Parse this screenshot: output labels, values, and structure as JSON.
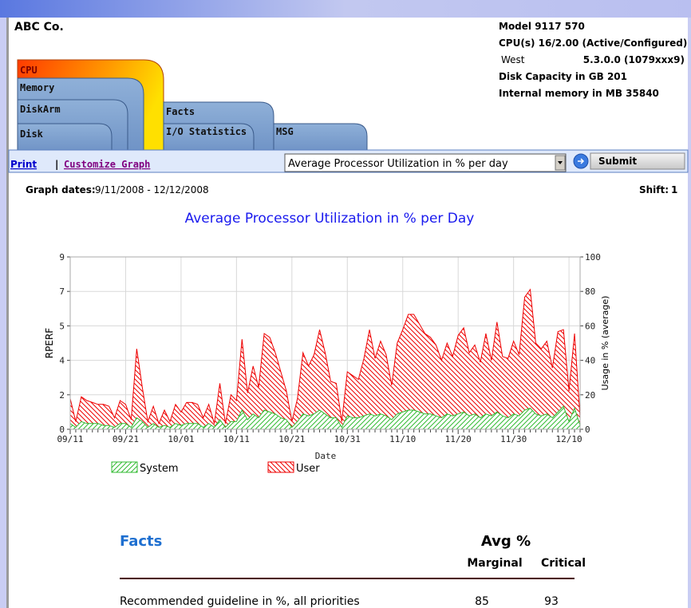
{
  "header": {
    "company": "ABC Co.",
    "model": "Model 9117 570",
    "cpus": "CPU(s) 16/2.00 (Active/Configured)",
    "region": "West",
    "version": "5.3.0.0  (1079xxx9)",
    "disk": "Disk Capacity in GB 201",
    "memory": "Internal memory in MB 35840"
  },
  "tabs": [
    "CPU",
    "Memory",
    "DiskArm",
    "Disk",
    "Facts",
    "I/O Statistics",
    "MSG"
  ],
  "toolbar": {
    "print": "Print",
    "separator": "|",
    "customize": "Customize Graph",
    "select": "Average Processor Utilization in % per day",
    "submit": "Submit"
  },
  "graph_dates": {
    "label": "Graph dates:",
    "value": "9/11/2008 - 12/12/2008"
  },
  "shift": {
    "label": "Shift:",
    "value": "1"
  },
  "chart_data": {
    "type": "area",
    "title": "Average Processor Utilization in % per Day",
    "x_label": "Date",
    "y_label": "RPERF",
    "y2_label": "Usage in % (average)",
    "categories": [
      "09/11",
      null,
      null,
      null,
      null,
      null,
      null,
      null,
      null,
      null,
      "09/21",
      null,
      null,
      null,
      null,
      null,
      null,
      null,
      null,
      null,
      "10/01",
      null,
      null,
      null,
      null,
      null,
      null,
      null,
      null,
      null,
      "10/11",
      null,
      null,
      null,
      null,
      null,
      null,
      null,
      null,
      null,
      "10/21",
      null,
      null,
      null,
      null,
      null,
      null,
      null,
      null,
      null,
      "10/31",
      null,
      null,
      null,
      null,
      null,
      null,
      null,
      null,
      null,
      "11/10",
      null,
      null,
      null,
      null,
      null,
      null,
      null,
      null,
      null,
      "11/20",
      null,
      null,
      null,
      null,
      null,
      null,
      null,
      null,
      null,
      "11/30",
      null,
      null,
      null,
      null,
      null,
      null,
      null,
      null,
      null,
      "12/10",
      null,
      null
    ],
    "series": [
      {
        "name": "User",
        "color": "#ee0000",
        "values": [
          1.6,
          0.4,
          1.7,
          1.5,
          1.4,
          1.3,
          1.3,
          1.2,
          0.6,
          1.5,
          1.3,
          0.5,
          4.2,
          2.2,
          0.4,
          1.2,
          0.3,
          1.0,
          0.4,
          1.3,
          0.9,
          1.4,
          1.4,
          1.3,
          0.6,
          1.3,
          0.3,
          2.4,
          0.3,
          1.8,
          1.5,
          4.7,
          1.9,
          3.3,
          2.2,
          5.0,
          4.8,
          4.0,
          3.0,
          2.0,
          0.4,
          1.6,
          4.0,
          3.3,
          3.9,
          5.2,
          4.0,
          2.5,
          2.4,
          0.4,
          3.0,
          2.8,
          2.6,
          3.7,
          5.2,
          3.7,
          4.6,
          3.9,
          2.3,
          4.5,
          5.2,
          6.0,
          6.0,
          5.5,
          5.0,
          4.8,
          4.4,
          3.6,
          4.5,
          3.8,
          4.9,
          5.3,
          4.0,
          4.4,
          3.5,
          5.0,
          3.6,
          5.6,
          3.8,
          3.7,
          4.6,
          3.9,
          6.9,
          7.3,
          4.5,
          4.2,
          4.6,
          3.2,
          5.1,
          5.2,
          2.0,
          5.0,
          0.6
        ]
      },
      {
        "name": "System",
        "color": "#33bb33",
        "values": [
          0.3,
          0.1,
          0.4,
          0.3,
          0.3,
          0.3,
          0.2,
          0.2,
          0.1,
          0.3,
          0.3,
          0.1,
          0.6,
          0.4,
          0.1,
          0.3,
          0.1,
          0.2,
          0.1,
          0.3,
          0.2,
          0.3,
          0.3,
          0.3,
          0.1,
          0.3,
          0.1,
          0.5,
          0.1,
          0.4,
          0.4,
          1.0,
          0.5,
          0.8,
          0.6,
          1.0,
          0.9,
          0.8,
          0.6,
          0.5,
          0.1,
          0.4,
          0.8,
          0.7,
          0.8,
          1.0,
          0.8,
          0.6,
          0.6,
          0.1,
          0.7,
          0.6,
          0.6,
          0.7,
          0.8,
          0.7,
          0.8,
          0.7,
          0.5,
          0.8,
          0.9,
          1.0,
          1.0,
          0.9,
          0.8,
          0.8,
          0.7,
          0.6,
          0.8,
          0.7,
          0.8,
          0.9,
          0.7,
          0.8,
          0.6,
          0.8,
          0.7,
          0.9,
          0.7,
          0.6,
          0.8,
          0.7,
          1.0,
          1.1,
          0.8,
          0.7,
          0.8,
          0.6,
          0.9,
          1.2,
          0.4,
          1.1,
          0.2
        ]
      }
    ],
    "ylim": [
      0,
      9
    ],
    "yticks": [
      0,
      {
        "value": 1.8,
        "label": "2"
      },
      {
        "value": 3.6,
        "label": "4"
      },
      {
        "value": 5.4,
        "label": "5"
      },
      {
        "value": 7.2,
        "label": "7"
      },
      9
    ],
    "y2lim": [
      0,
      100
    ],
    "y2ticks": [
      0,
      20,
      40,
      60,
      80,
      100
    ],
    "grid": true
  },
  "facts": {
    "title": "Facts",
    "group": "Avg %",
    "columns": [
      "Marginal",
      "Critical"
    ],
    "rows": [
      {
        "label": "Recommended guideline in %, all priorities",
        "values": [
          85,
          93
        ]
      }
    ]
  }
}
